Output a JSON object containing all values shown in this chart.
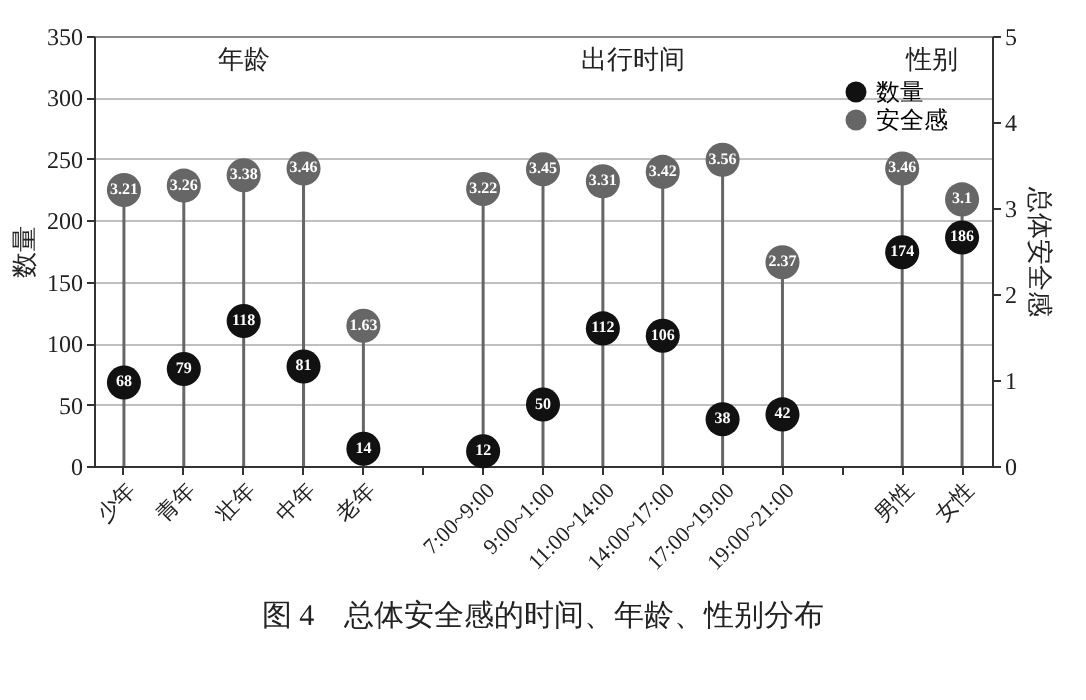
{
  "chart_data": {
    "type": "lollipop",
    "title": "图 4　总体安全感的时间、年龄、性别分布",
    "ylabel": "数量",
    "y2label": "总体安全感",
    "categories": [
      "少年",
      "青年",
      "壮年",
      "中年",
      "老年",
      null,
      "7:00~9:00",
      "9:00~1:00",
      "11:00~14:00",
      "14:00~17:00",
      "17:00~19:00",
      "19:00~21:00",
      null,
      "男性",
      "女性"
    ],
    "series": [
      {
        "name": "数量",
        "type": "scatter",
        "color": "#111111",
        "values": [
          68,
          79,
          118,
          81,
          14,
          null,
          12,
          50,
          112,
          106,
          38,
          42,
          null,
          174,
          186
        ]
      },
      {
        "name": "安全感",
        "type": "lollipop",
        "axis": "y2",
        "color": "#666666",
        "values": [
          3.21,
          3.26,
          3.38,
          3.46,
          1.63,
          null,
          3.22,
          3.45,
          3.31,
          3.42,
          3.56,
          2.37,
          null,
          3.46,
          3.1
        ]
      }
    ],
    "annotations": [
      "年龄",
      "出行时间",
      "性别"
    ],
    "ylim": [
      0,
      350
    ],
    "yticks": [
      0,
      50,
      100,
      150,
      200,
      250,
      300,
      350
    ],
    "y2lim": [
      0,
      5
    ],
    "y2ticks": [
      0,
      1,
      2,
      3,
      4,
      5
    ],
    "grid": "y",
    "legend": "top right",
    "data_labels": true,
    "marker": "circle"
  }
}
